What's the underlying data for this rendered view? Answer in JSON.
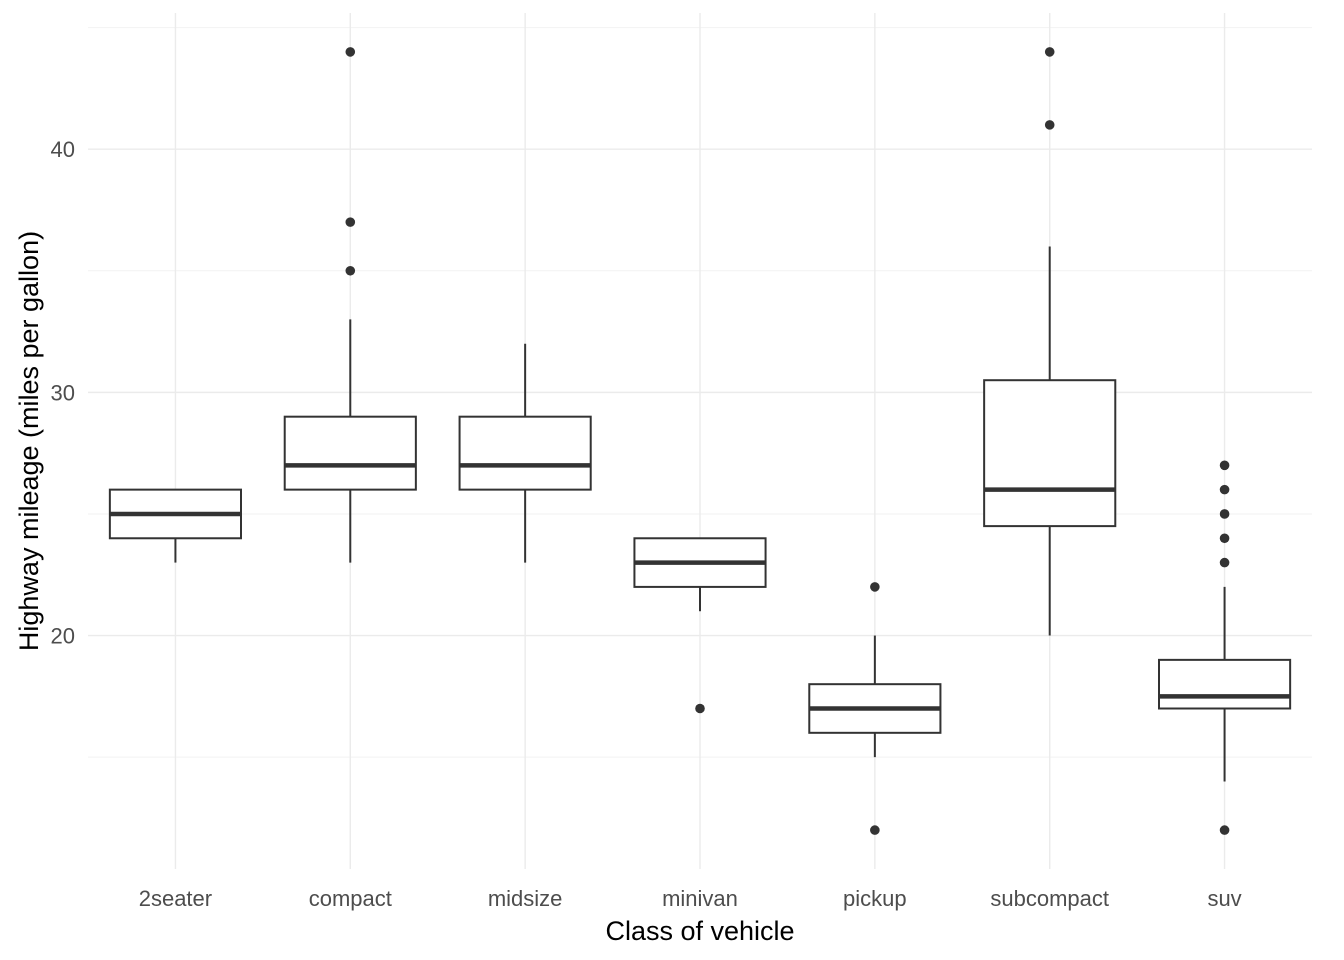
{
  "chart_data": {
    "type": "boxplot",
    "title": "",
    "xlabel": "Class of vehicle",
    "ylabel": "Highway mileage (miles per gallon)",
    "ylim": [
      10.4,
      45.6
    ],
    "y_major_ticks": [
      20,
      30,
      40
    ],
    "y_minor_ticks": [
      15,
      25,
      35,
      45
    ],
    "grid": true,
    "legend": "none",
    "colors": {
      "box_line": "#333333",
      "box_fill": "#ffffff",
      "grid_major": "#ebebeb",
      "grid_minor": "#f2f2f2",
      "tick_text": "#4d4d4d",
      "axis_title": "#000000"
    },
    "categories": [
      "2seater",
      "compact",
      "midsize",
      "minivan",
      "pickup",
      "subcompact",
      "suv"
    ],
    "boxes": [
      {
        "category": "2seater",
        "lower_whisker": 23,
        "q1": 24,
        "median": 25,
        "q3": 26,
        "upper_whisker": 26,
        "outliers": []
      },
      {
        "category": "compact",
        "lower_whisker": 23,
        "q1": 26,
        "median": 27,
        "q3": 29,
        "upper_whisker": 33,
        "outliers": [
          35,
          37,
          44
        ]
      },
      {
        "category": "midsize",
        "lower_whisker": 23,
        "q1": 26,
        "median": 27,
        "q3": 29,
        "upper_whisker": 32,
        "outliers": []
      },
      {
        "category": "minivan",
        "lower_whisker": 21,
        "q1": 22,
        "median": 23,
        "q3": 24,
        "upper_whisker": 24,
        "outliers": [
          17
        ]
      },
      {
        "category": "pickup",
        "lower_whisker": 15,
        "q1": 16,
        "median": 17,
        "q3": 18,
        "upper_whisker": 20,
        "outliers": [
          12,
          22
        ]
      },
      {
        "category": "subcompact",
        "lower_whisker": 20,
        "q1": 24.5,
        "median": 26,
        "q3": 30.5,
        "upper_whisker": 36,
        "outliers": [
          41,
          44
        ]
      },
      {
        "category": "suv",
        "lower_whisker": 14,
        "q1": 17,
        "median": 17.5,
        "q3": 19,
        "upper_whisker": 22,
        "outliers": [
          12,
          23,
          24,
          25,
          26,
          27
        ]
      }
    ]
  }
}
